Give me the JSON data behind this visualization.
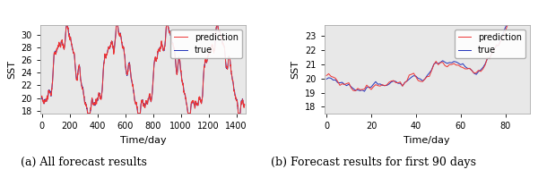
{
  "t_full_max": 1460,
  "t_90_max": 90,
  "ylim_full": [
    17.5,
    31.5
  ],
  "ylim_90": [
    17.5,
    23.8
  ],
  "yticks_full": [
    18,
    20,
    22,
    24,
    26,
    28,
    30
  ],
  "yticks_90": [
    18,
    19,
    20,
    21,
    22,
    23
  ],
  "xticks_full": [
    0,
    200,
    400,
    600,
    800,
    1000,
    1200,
    1400
  ],
  "xticks_90": [
    0,
    20,
    40,
    60,
    80
  ],
  "xlabel": "Time/day",
  "ylabel": "SST",
  "color_pred": "#EE3333",
  "color_true": "#2233BB",
  "label_pred": "prediction",
  "label_true": "true",
  "caption_a": "(a) All forecast results",
  "caption_b": "(b) Forecast results for first 90 days",
  "linewidth": 0.7,
  "legend_fontsize": 7,
  "caption_fontsize": 9,
  "axis_fontsize": 8,
  "tick_fontsize": 7,
  "bg_color": "#e8e8e8"
}
